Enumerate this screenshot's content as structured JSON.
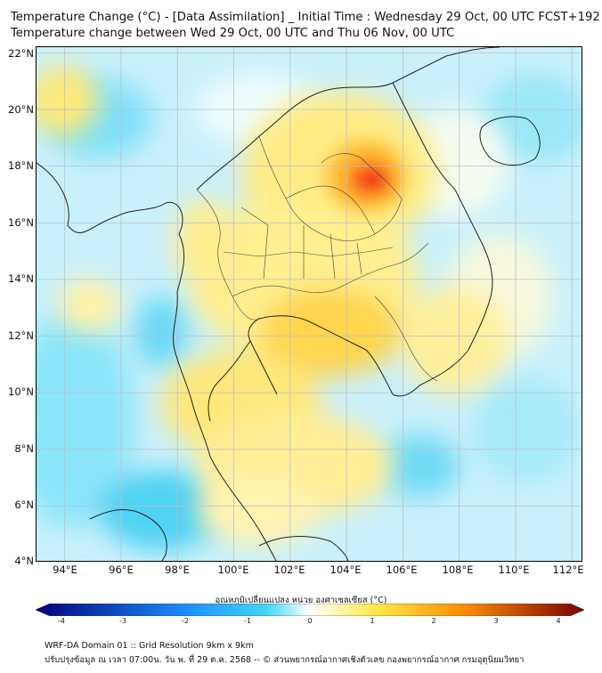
{
  "title": {
    "line1": "Temperature Change (°C) - [Data Assimilation] _ Initial Time : Wednesday 29 Oct, 00 UTC FCST+192",
    "line2": "Temperature change between Wed 29 Oct, 00 UTC and Thu 06 Nov, 00 UTC"
  },
  "map": {
    "lat_labels": [
      "22°N",
      "20°N",
      "18°N",
      "16°N",
      "14°N",
      "12°N",
      "10°N",
      "8°N",
      "6°N",
      "4°N"
    ],
    "lon_labels": [
      "94°E",
      "96°E",
      "98°E",
      "100°E",
      "102°E",
      "104°E",
      "106°E",
      "108°E",
      "110°E",
      "112°E"
    ],
    "lat_range": [
      4,
      22.2
    ],
    "lon_range": [
      93,
      112.4
    ]
  },
  "colorbar": {
    "title": "อุณหภูมิเปลี่ยนแปลง หน่วย องศาเซลเซียส (°C)",
    "ticks": [
      "-4",
      "-3",
      "-2",
      "-1",
      "0",
      "1",
      "2",
      "3",
      "4"
    ],
    "colors": {
      "min": "#00007a",
      "low": "#1e90ff",
      "cool": "#3fd6f5",
      "near_zero": "#ffffff",
      "warm": "#ffe94a",
      "high": "#ff8c00",
      "max": "#7a0000"
    }
  },
  "footer": {
    "line1": "WRF-DA Domain 01 :: Grid Resolution 9km x 9km",
    "line2": "ปรับปรุงข้อมูล ณ เวลา 07:00น. วัน พ. ที่ 29 ต.ค. 2568 -- © ส่วนพยากรณ์อากาศเชิงตัวเลข กองพยากรณ์อากาศ กรมอุตุนิยมวิทยา"
  }
}
